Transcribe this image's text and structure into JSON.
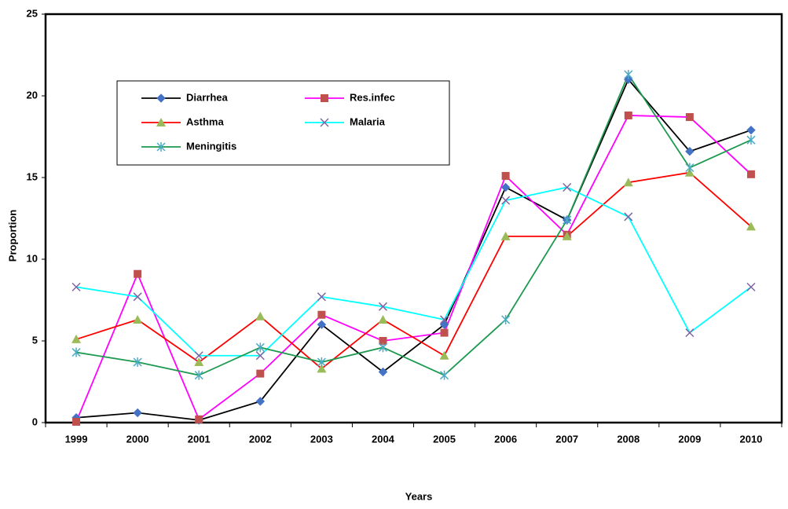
{
  "chart_data": {
    "type": "line",
    "x_label": "Years",
    "y_label": "Proportion",
    "categories": [
      "1999",
      "2000",
      "2001",
      "2002",
      "2003",
      "2004",
      "2005",
      "2006",
      "2007",
      "2008",
      "2009",
      "2010"
    ],
    "ylim": [
      0,
      25
    ],
    "yticks": [
      0,
      5,
      10,
      15,
      20,
      25
    ],
    "series": [
      {
        "name": "Diarrhea",
        "color": "#000000",
        "marker": "diamond",
        "marker_color": "#4472c4",
        "values": [
          0.3,
          0.6,
          0.15,
          1.3,
          6.0,
          3.1,
          6.0,
          14.4,
          12.4,
          21.0,
          16.6,
          17.9
        ]
      },
      {
        "name": "Res.infec",
        "color": "#ff00ff",
        "marker": "square",
        "marker_color": "#c0504d",
        "values": [
          0.05,
          9.1,
          0.2,
          3.0,
          6.6,
          5.0,
          5.5,
          15.1,
          11.5,
          18.8,
          18.7,
          15.2
        ]
      },
      {
        "name": "Asthma",
        "color": "#ff0000",
        "marker": "triangle",
        "marker_color": "#9bbb59",
        "values": [
          5.1,
          6.3,
          3.7,
          6.5,
          3.3,
          6.3,
          4.1,
          11.4,
          11.4,
          14.7,
          15.3,
          12.0
        ]
      },
      {
        "name": "Malaria",
        "color": "#00ffff",
        "marker": "x",
        "marker_color": "#8064a2",
        "values": [
          8.3,
          7.7,
          4.1,
          4.1,
          7.7,
          7.1,
          6.3,
          13.6,
          14.4,
          12.6,
          5.5,
          8.3
        ]
      },
      {
        "name": "Meningitis",
        "color": "#1e9a50",
        "marker": "star",
        "marker_color": "#4bacc6",
        "values": [
          4.3,
          3.7,
          2.9,
          4.6,
          3.7,
          4.6,
          2.9,
          6.3,
          12.4,
          21.3,
          15.6,
          17.3
        ]
      }
    ]
  }
}
